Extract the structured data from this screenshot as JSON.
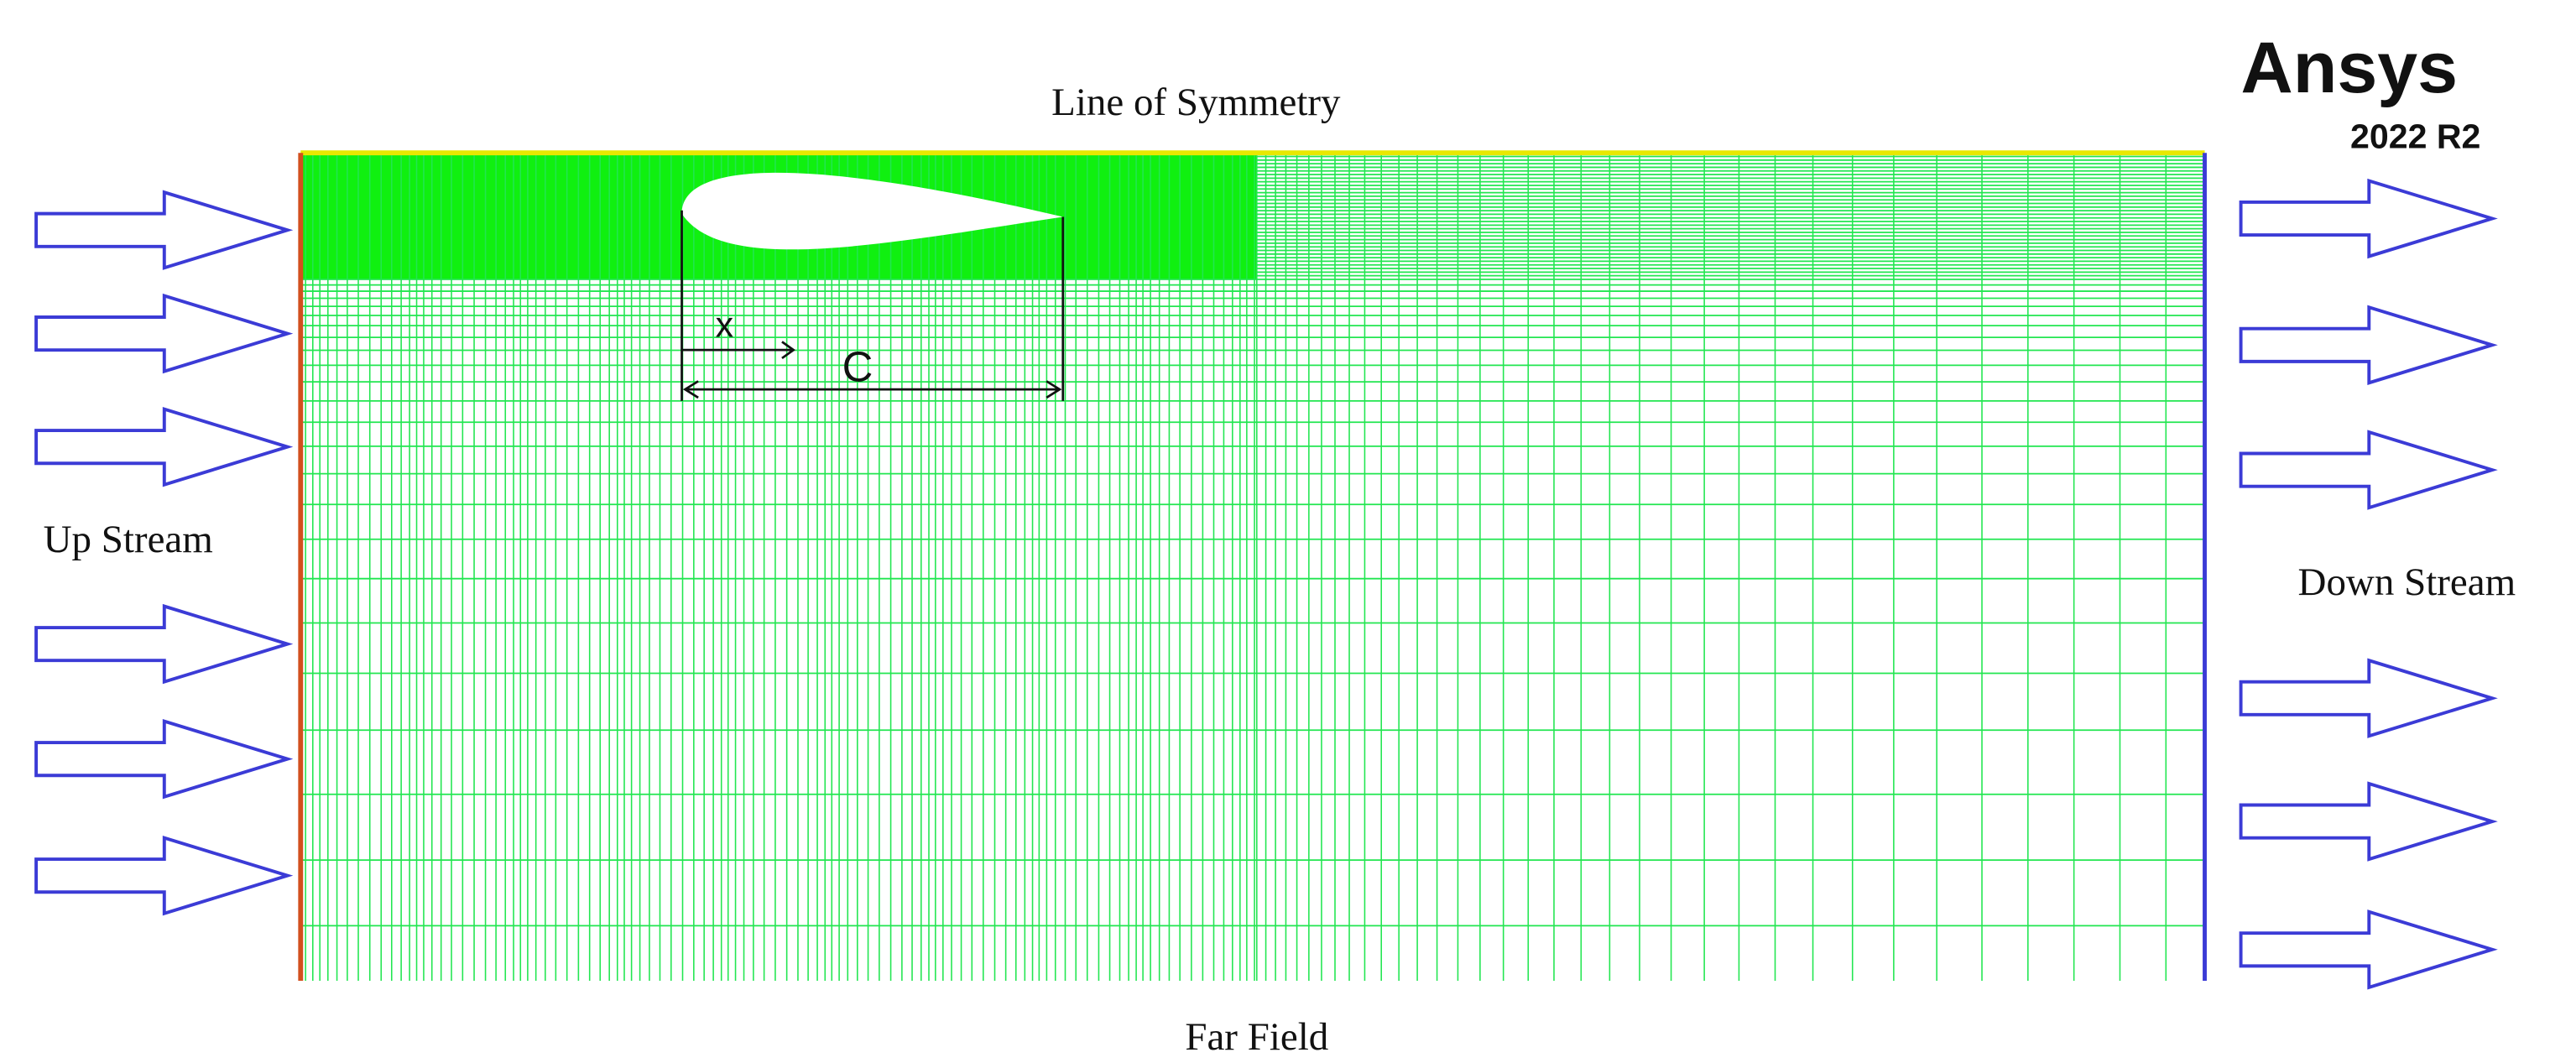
{
  "header": {
    "logo": "Ansys",
    "version": "2022 R2"
  },
  "boundaries": {
    "top": "Line of Symmetry",
    "left": "Up Stream",
    "right": "Down Stream",
    "bottom": "Far Field"
  },
  "dimensions": {
    "position": "x",
    "chord": "C"
  }
}
